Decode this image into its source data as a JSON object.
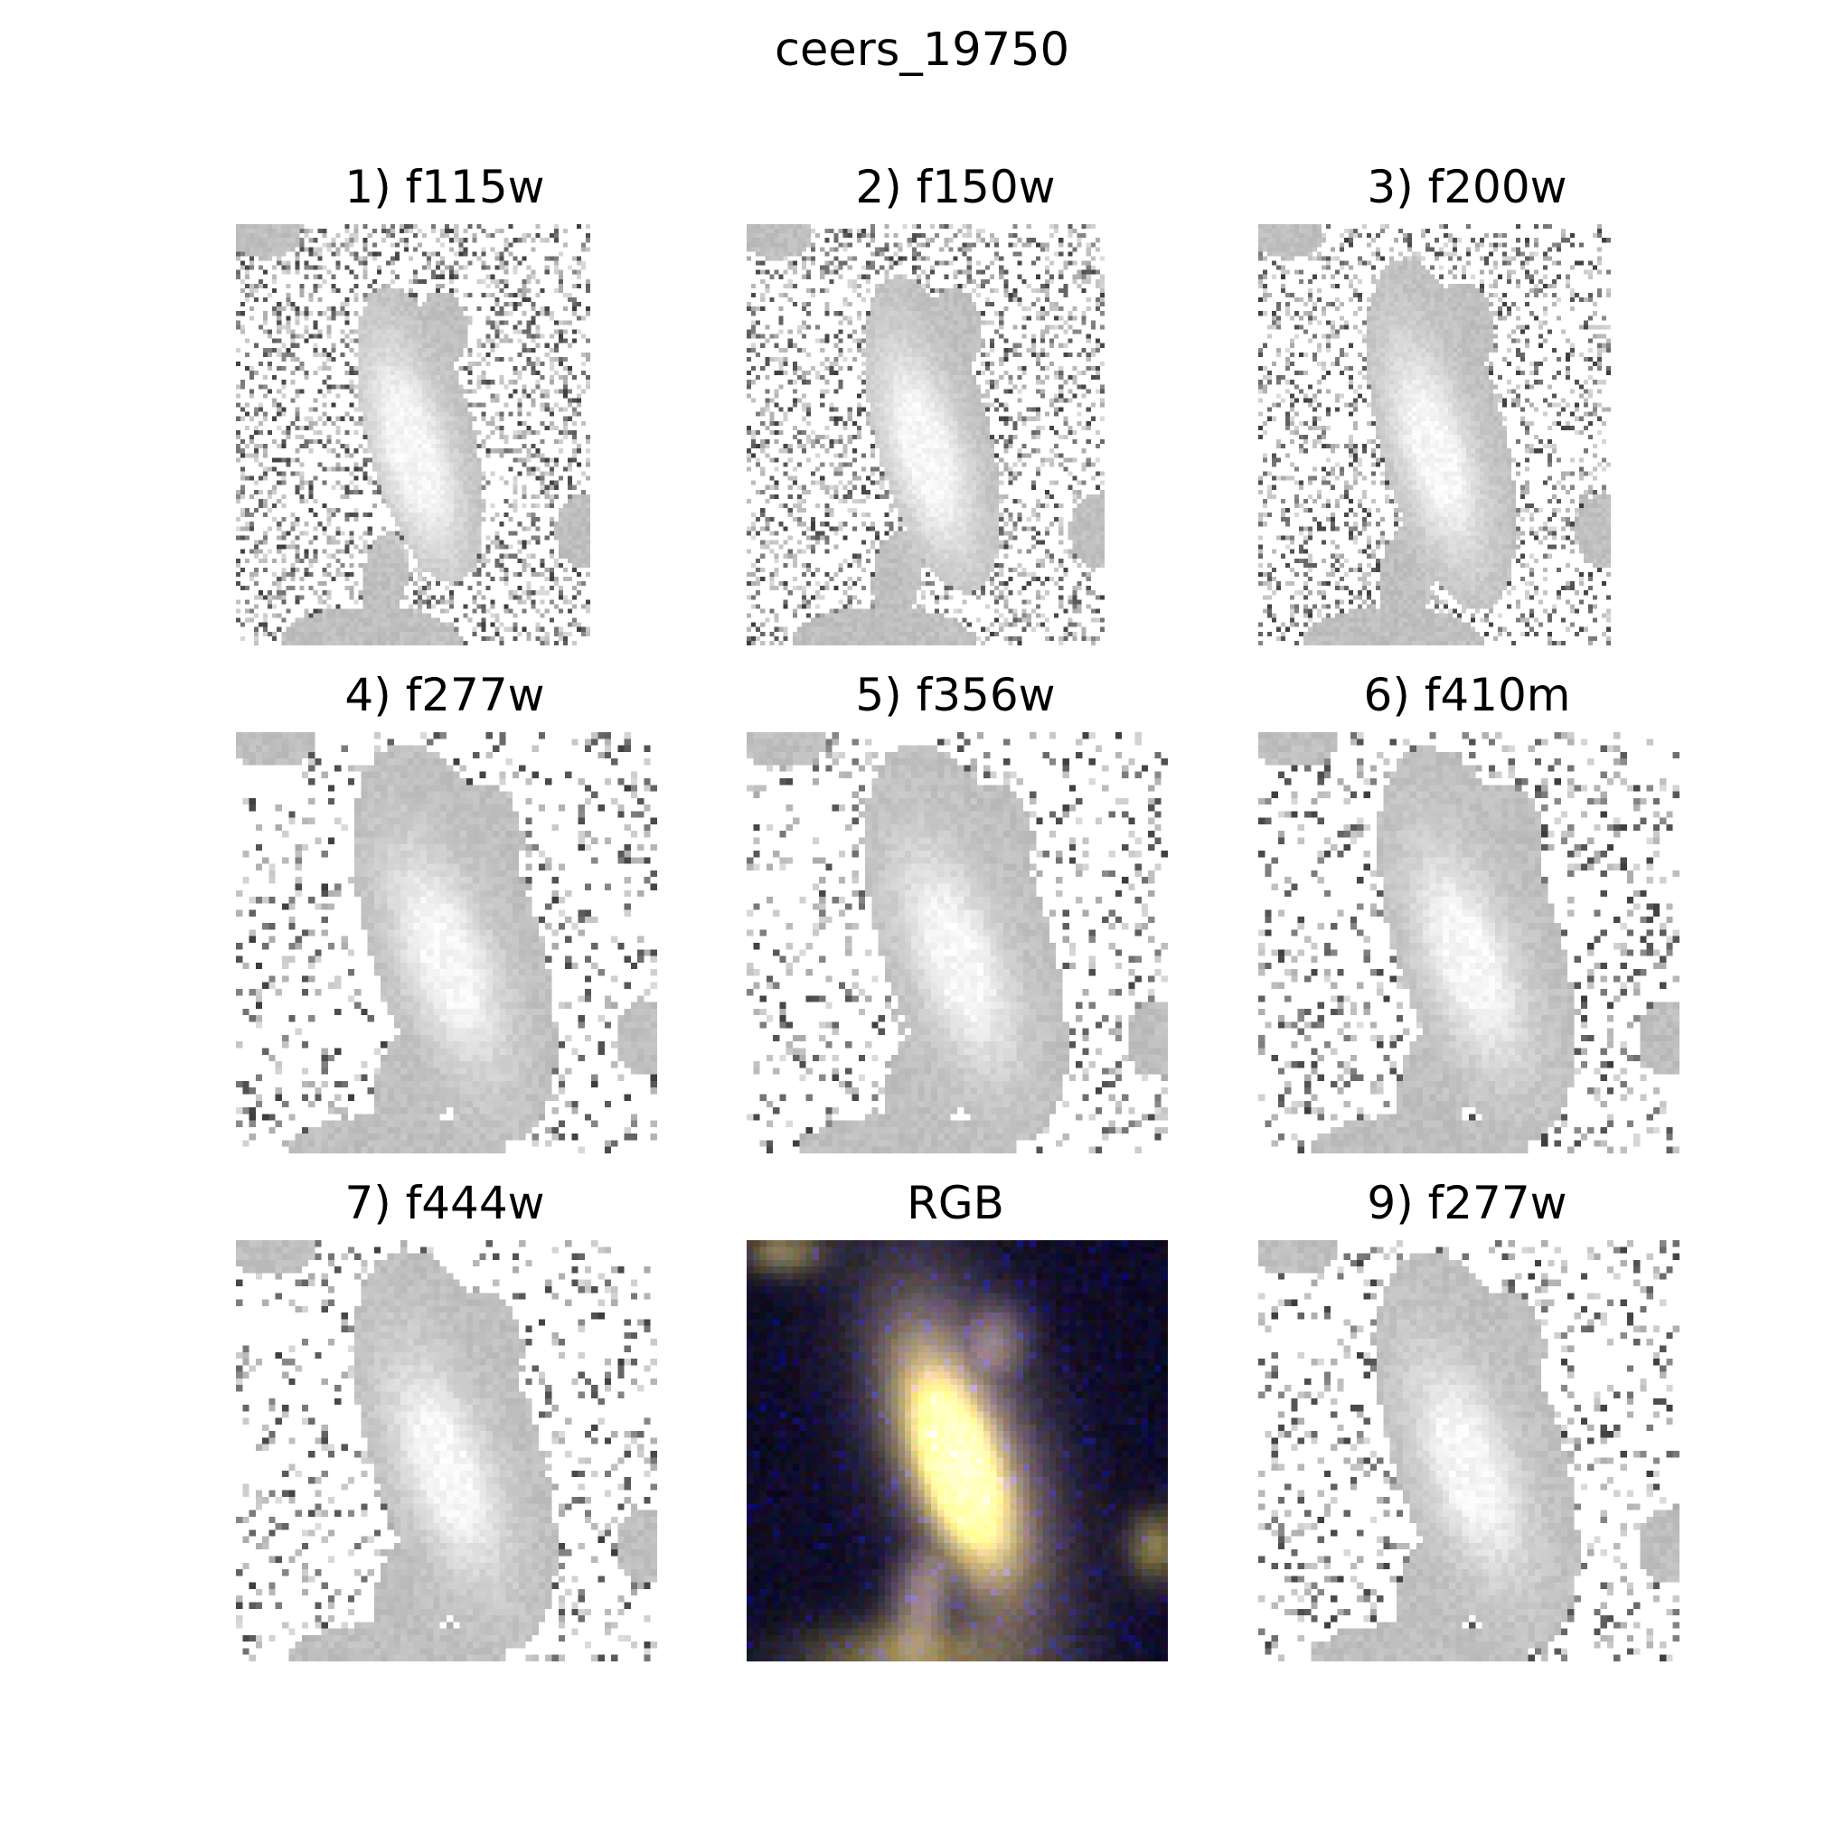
{
  "figure": {
    "title": "ceers_19750",
    "panels": [
      {
        "label": "1) f115w",
        "kind": "gray",
        "noise": 0.34,
        "gal": 0.55,
        "shape": "A"
      },
      {
        "label": "2) f150w",
        "kind": "gray",
        "noise": 0.32,
        "gal": 0.6,
        "shape": "A"
      },
      {
        "label": "3) f200w",
        "kind": "gray",
        "noise": 0.28,
        "gal": 0.72,
        "shape": "A"
      },
      {
        "label": "4) f277w",
        "kind": "gray",
        "noise": 0.18,
        "gal": 0.95,
        "shape": "B"
      },
      {
        "label": "5) f356w",
        "kind": "gray",
        "noise": 0.17,
        "gal": 0.95,
        "shape": "B"
      },
      {
        "label": "6) f410m",
        "kind": "gray",
        "noise": 0.22,
        "gal": 0.9,
        "shape": "B"
      },
      {
        "label": "7) f444w",
        "kind": "gray",
        "noise": 0.17,
        "gal": 0.95,
        "shape": "B"
      },
      {
        "label": "RGB",
        "kind": "rgb",
        "noise": 0.1,
        "gal": 1.0,
        "shape": "B"
      },
      {
        "label": "9) f277w",
        "kind": "gray",
        "noise": 0.18,
        "gal": 0.95,
        "shape": "B"
      }
    ],
    "colors": {
      "background": "#ffffff",
      "galaxy_gray": "#d8d8d8",
      "noise_dark": "#404040",
      "rgb_core": "#fff4a0",
      "rgb_sky": "#000010"
    }
  }
}
